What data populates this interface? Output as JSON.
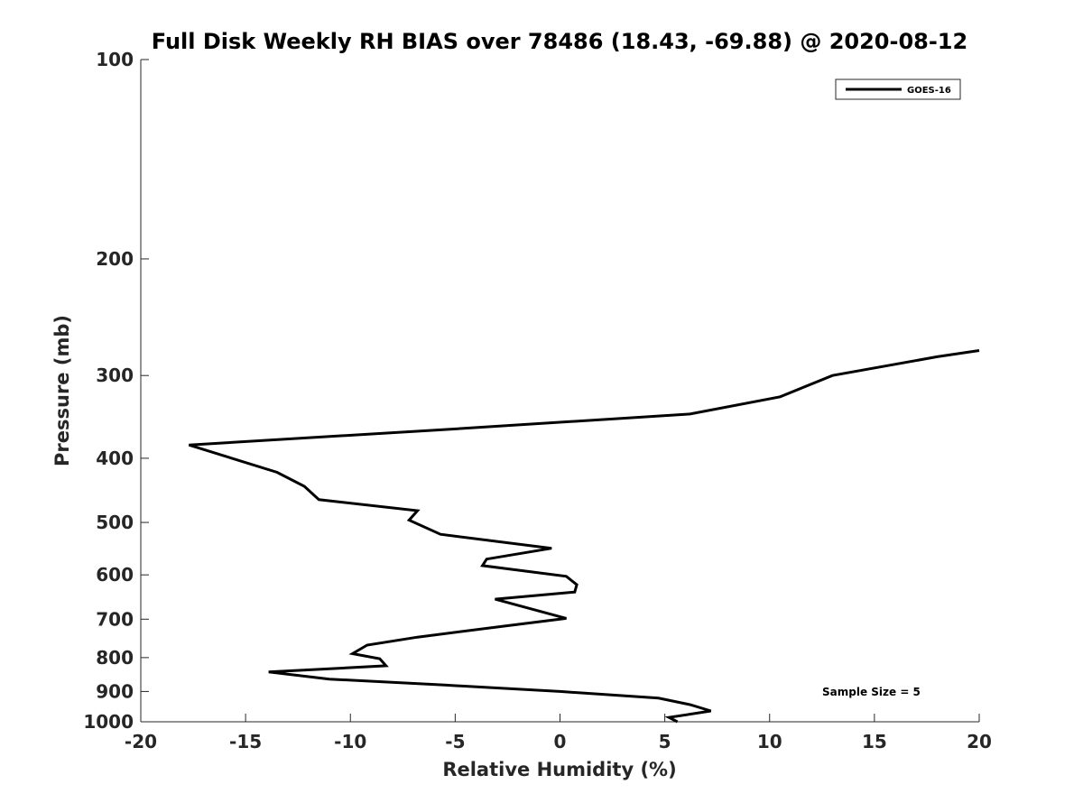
{
  "chart_data": {
    "type": "line",
    "title": "Full Disk Weekly RH BIAS over 78486 (18.43, -69.88) @ 2020-08-12",
    "xlabel": "Relative Humidity (%)",
    "ylabel": "Pressure (mb)",
    "xlim": [
      -20,
      20
    ],
    "ylim": [
      100,
      1000
    ],
    "y_scale": "log",
    "y_reversed": true,
    "grid": false,
    "legend_position": "top-right",
    "x_ticks": [
      -20,
      -15,
      -10,
      -5,
      0,
      5,
      10,
      15,
      20
    ],
    "x_tick_labels": [
      "-20",
      "-15",
      "-10",
      "-5",
      "0",
      "5",
      "10",
      "15",
      "20"
    ],
    "y_ticks": [
      100,
      200,
      300,
      400,
      500,
      600,
      700,
      800,
      900,
      1000
    ],
    "y_tick_labels": [
      "100",
      "200",
      "300",
      "400",
      "500",
      "600",
      "700",
      "800",
      "900",
      "1000"
    ],
    "series": [
      {
        "name": "GOES-16",
        "color": "#000000",
        "points": [
          [
            20.0,
            275
          ],
          [
            18.0,
            281
          ],
          [
            13.0,
            300
          ],
          [
            10.5,
            323
          ],
          [
            6.2,
            343
          ],
          [
            -5.5,
            362
          ],
          [
            -17.7,
            382
          ],
          [
            -13.5,
            420
          ],
          [
            -12.2,
            441
          ],
          [
            -11.5,
            462
          ],
          [
            -6.8,
            480
          ],
          [
            -7.2,
            496
          ],
          [
            -5.7,
            521
          ],
          [
            -0.4,
            547
          ],
          [
            -3.5,
            568
          ],
          [
            -3.7,
            581
          ],
          [
            0.3,
            603
          ],
          [
            0.8,
            621
          ],
          [
            0.7,
            637
          ],
          [
            -3.1,
            653
          ],
          [
            0.3,
            698
          ],
          [
            -2.5,
            716
          ],
          [
            -6.8,
            745
          ],
          [
            -9.2,
            766
          ],
          [
            -9.9,
            789
          ],
          [
            -8.6,
            803
          ],
          [
            -8.3,
            823
          ],
          [
            -13.9,
            841
          ],
          [
            -11.0,
            862
          ],
          [
            -5.5,
            880
          ],
          [
            0.0,
            900
          ],
          [
            4.7,
            921
          ],
          [
            6.2,
            942
          ],
          [
            7.2,
            963
          ],
          [
            5.2,
            985
          ],
          [
            5.6,
            1000
          ]
        ]
      }
    ],
    "annotation": "Sample Size = 5"
  }
}
